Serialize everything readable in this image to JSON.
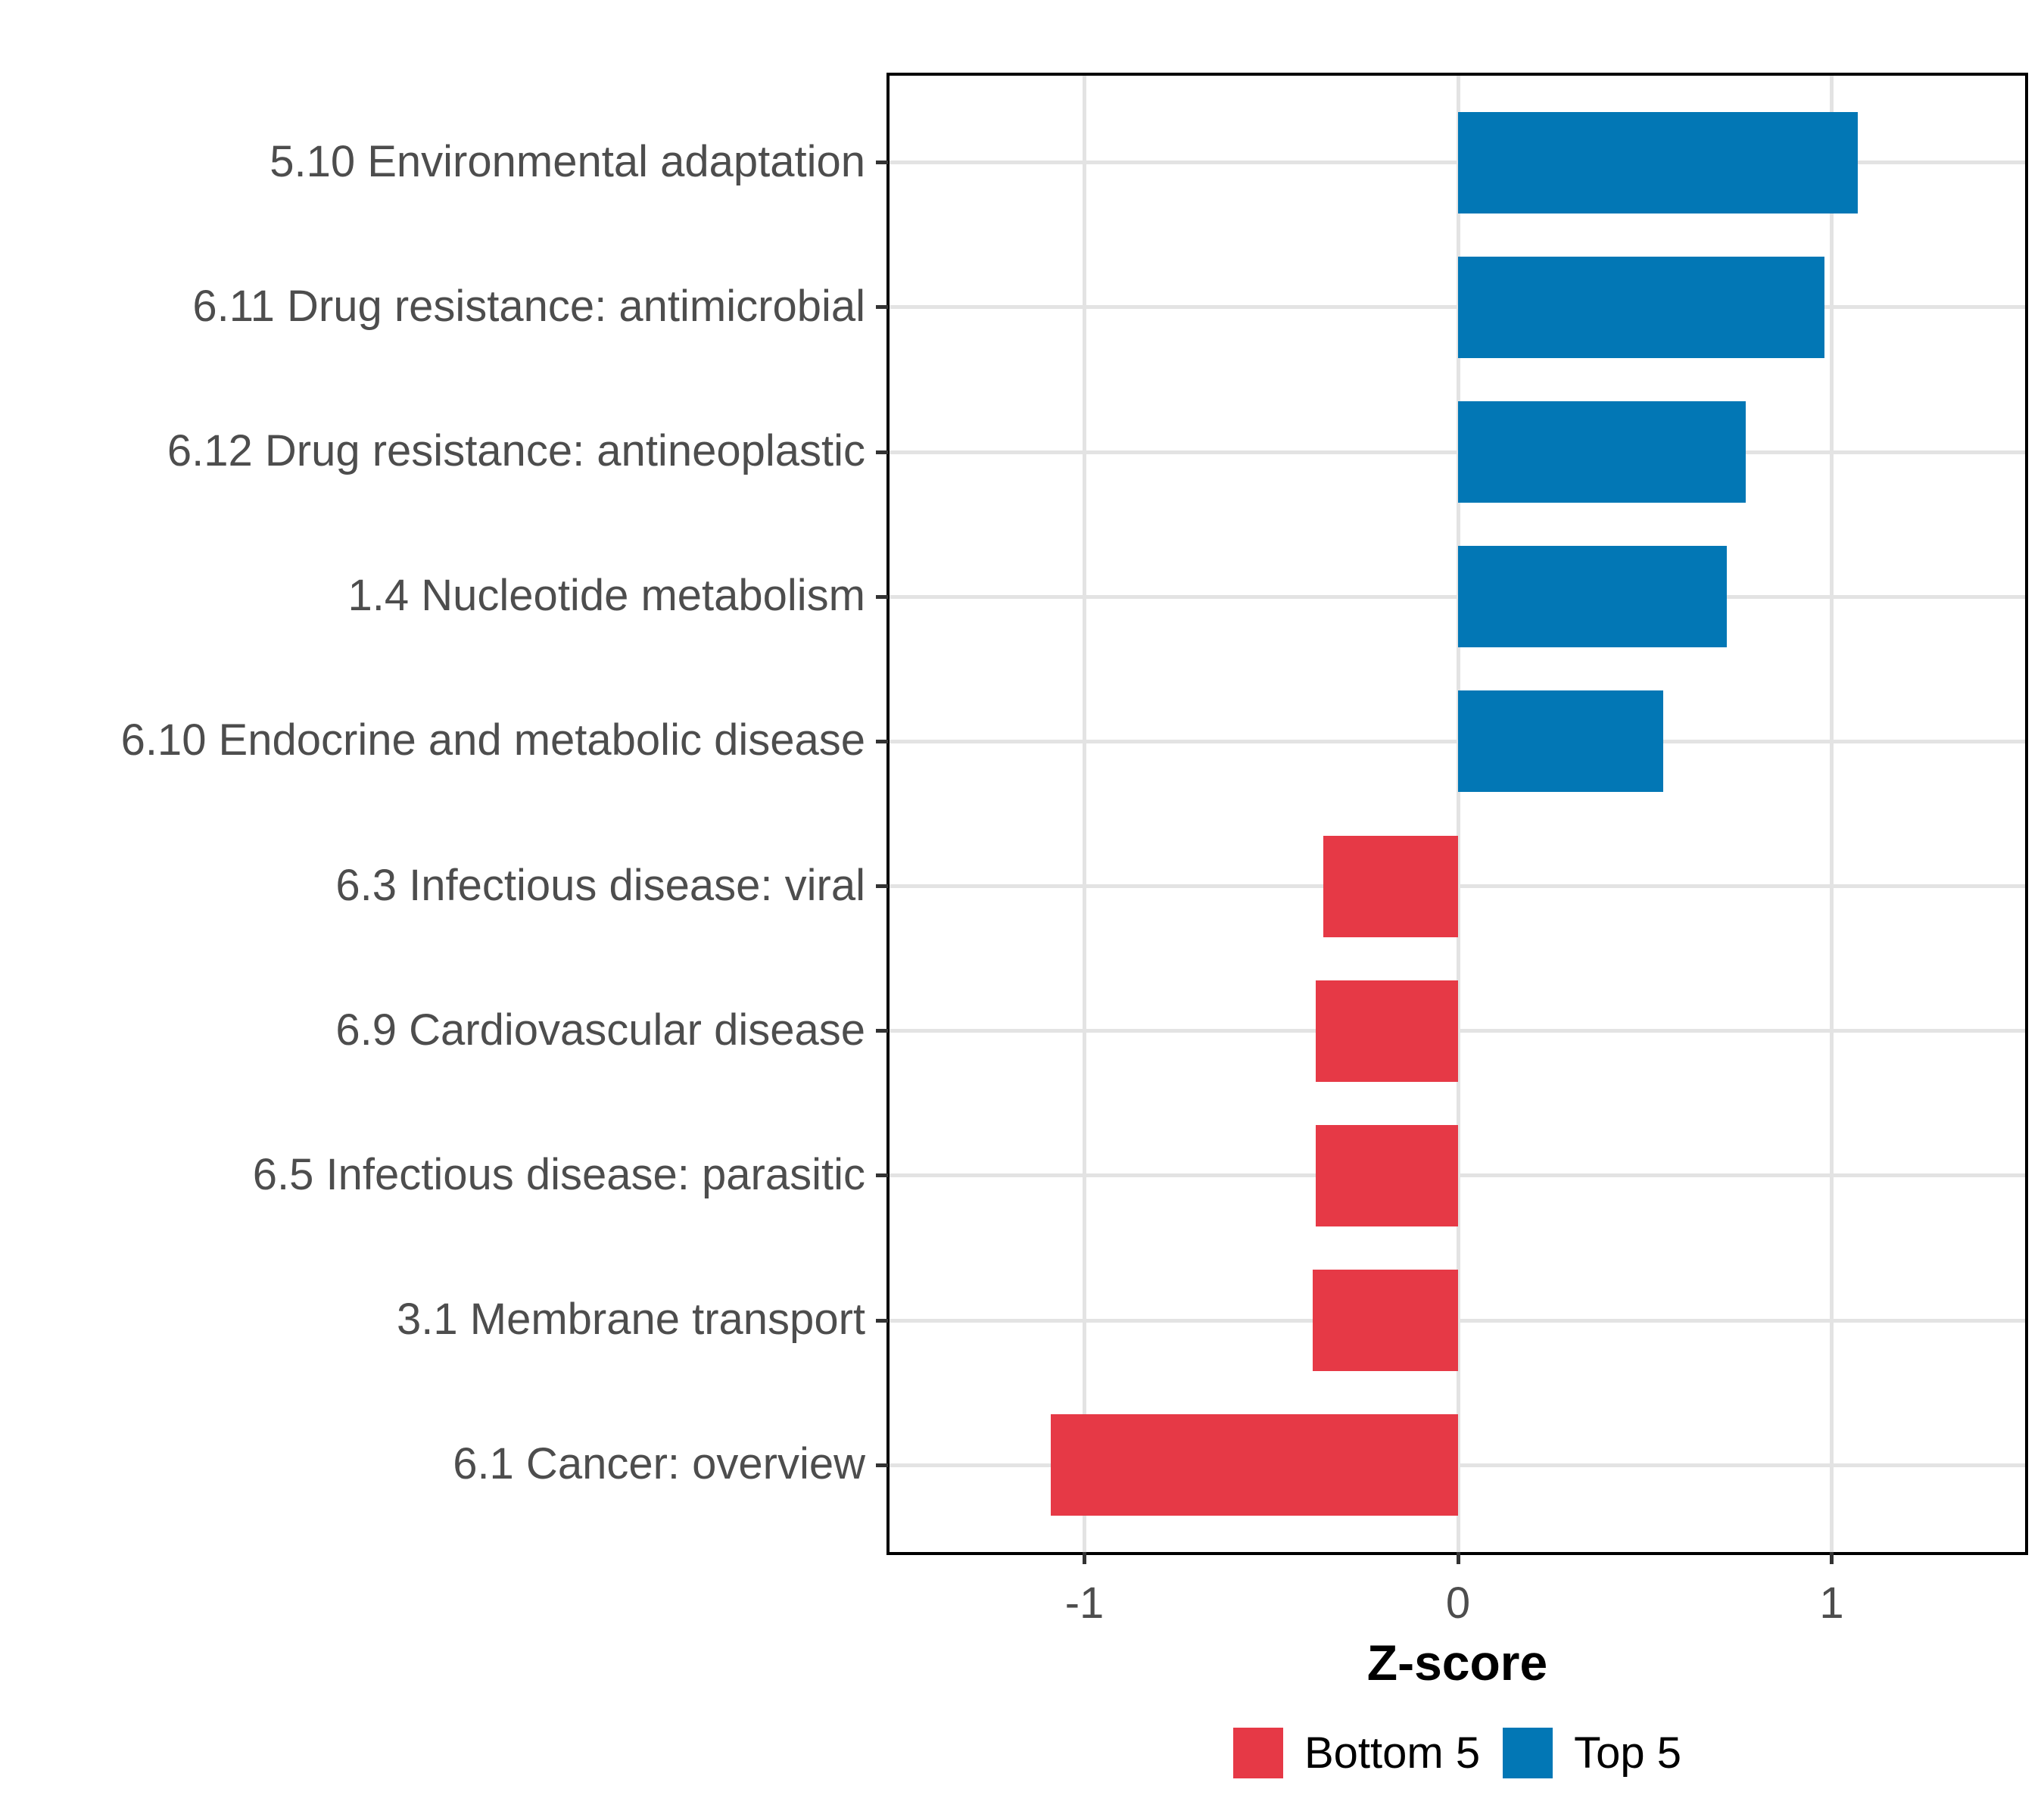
{
  "chart_data": {
    "type": "bar",
    "orientation": "horizontal",
    "title": "",
    "xlabel": "Z-score",
    "ylabel": "",
    "xlim": [
      -1.52,
      1.52
    ],
    "x_ticks": [
      -1,
      0,
      1
    ],
    "x_tick_labels": [
      "-1",
      "0",
      "1"
    ],
    "grid": "major-only",
    "panel_border": true,
    "legend_position": "bottom",
    "bar_width_fraction": 0.7,
    "categories": [
      "5.10 Environmental adaptation",
      "6.11 Drug resistance: antimicrobial",
      "6.12 Drug resistance: antineoplastic",
      "1.4 Nucleotide metabolism",
      "6.10 Endocrine and metabolic disease",
      "6.3 Infectious disease: viral",
      "6.9 Cardiovascular disease",
      "6.5 Infectious disease: parasitic",
      "3.1 Membrane transport",
      "6.1 Cancer: overview"
    ],
    "values": [
      1.07,
      0.98,
      0.77,
      0.72,
      0.55,
      -0.36,
      -0.38,
      -0.38,
      -0.39,
      -1.09
    ],
    "groups": [
      "Top 5",
      "Top 5",
      "Top 5",
      "Top 5",
      "Top 5",
      "Bottom 5",
      "Bottom 5",
      "Bottom 5",
      "Bottom 5",
      "Bottom 5"
    ]
  },
  "legend": {
    "items": [
      {
        "label": "Bottom 5",
        "color": "#E63946"
      },
      {
        "label": "Top 5",
        "color": "#0277B5"
      }
    ]
  },
  "colors": {
    "top5": "#0277B5",
    "bottom5": "#E63946",
    "grid": "#E3E3E3",
    "axis_text": "#4D4D4D",
    "axis_title": "#000000",
    "panel_border": "#000000",
    "tick": "#333333",
    "background": "#FFFFFF"
  }
}
